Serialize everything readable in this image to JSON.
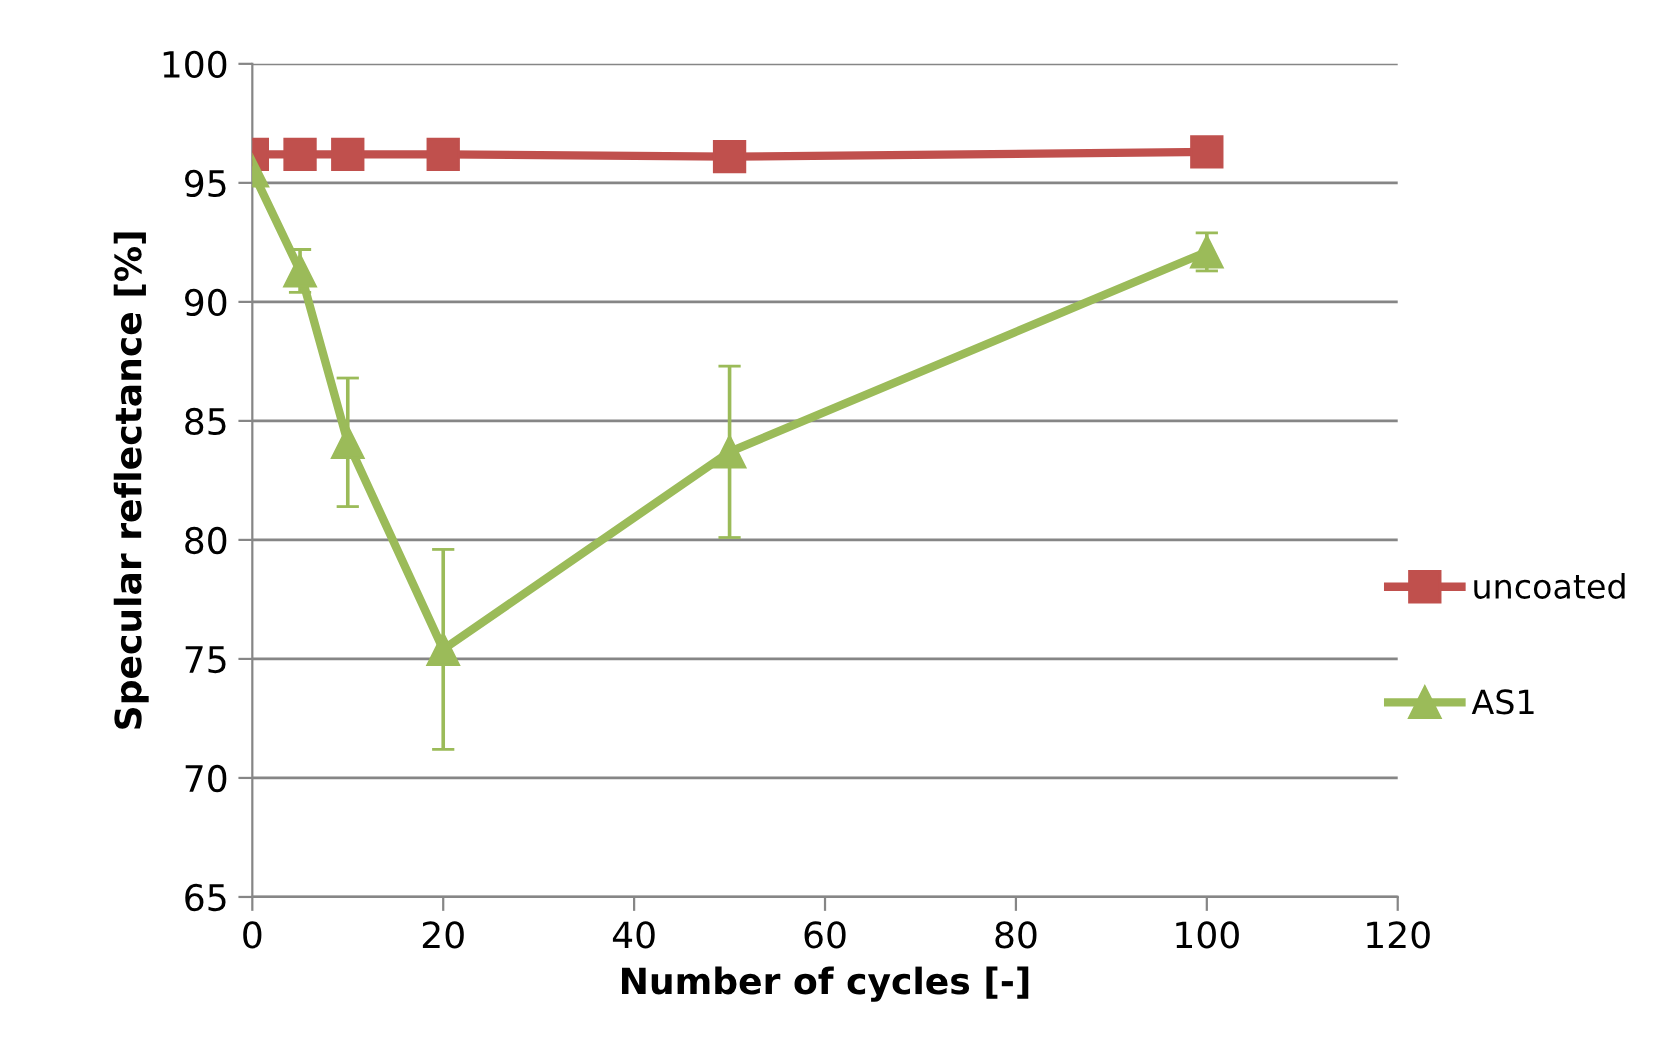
{
  "chart_data": {
    "type": "line",
    "xlabel": "Number of cycles [-]",
    "ylabel": "Specular reflectance [%]",
    "x": [
      0,
      5,
      10,
      20,
      50,
      100
    ],
    "series": [
      {
        "name": "uncoated",
        "color": "#c0504d",
        "marker": "square",
        "values": [
          96.2,
          96.2,
          96.2,
          96.2,
          96.1,
          96.3
        ]
      },
      {
        "name": "AS1",
        "color": "#9bbb59",
        "marker": "triangle",
        "values": [
          95.5,
          91.3,
          84.1,
          75.4,
          83.7,
          92.1
        ],
        "errors": [
          0.3,
          0.9,
          2.7,
          4.2,
          3.6,
          0.8
        ]
      }
    ],
    "xlim": [
      0,
      120
    ],
    "xticks": [
      0,
      20,
      40,
      60,
      80,
      100,
      120
    ],
    "ylim": [
      65,
      100
    ],
    "yticks": [
      65,
      70,
      75,
      80,
      85,
      90,
      95,
      100
    ],
    "grid": "y",
    "legend": "right",
    "line_style": "solid"
  }
}
